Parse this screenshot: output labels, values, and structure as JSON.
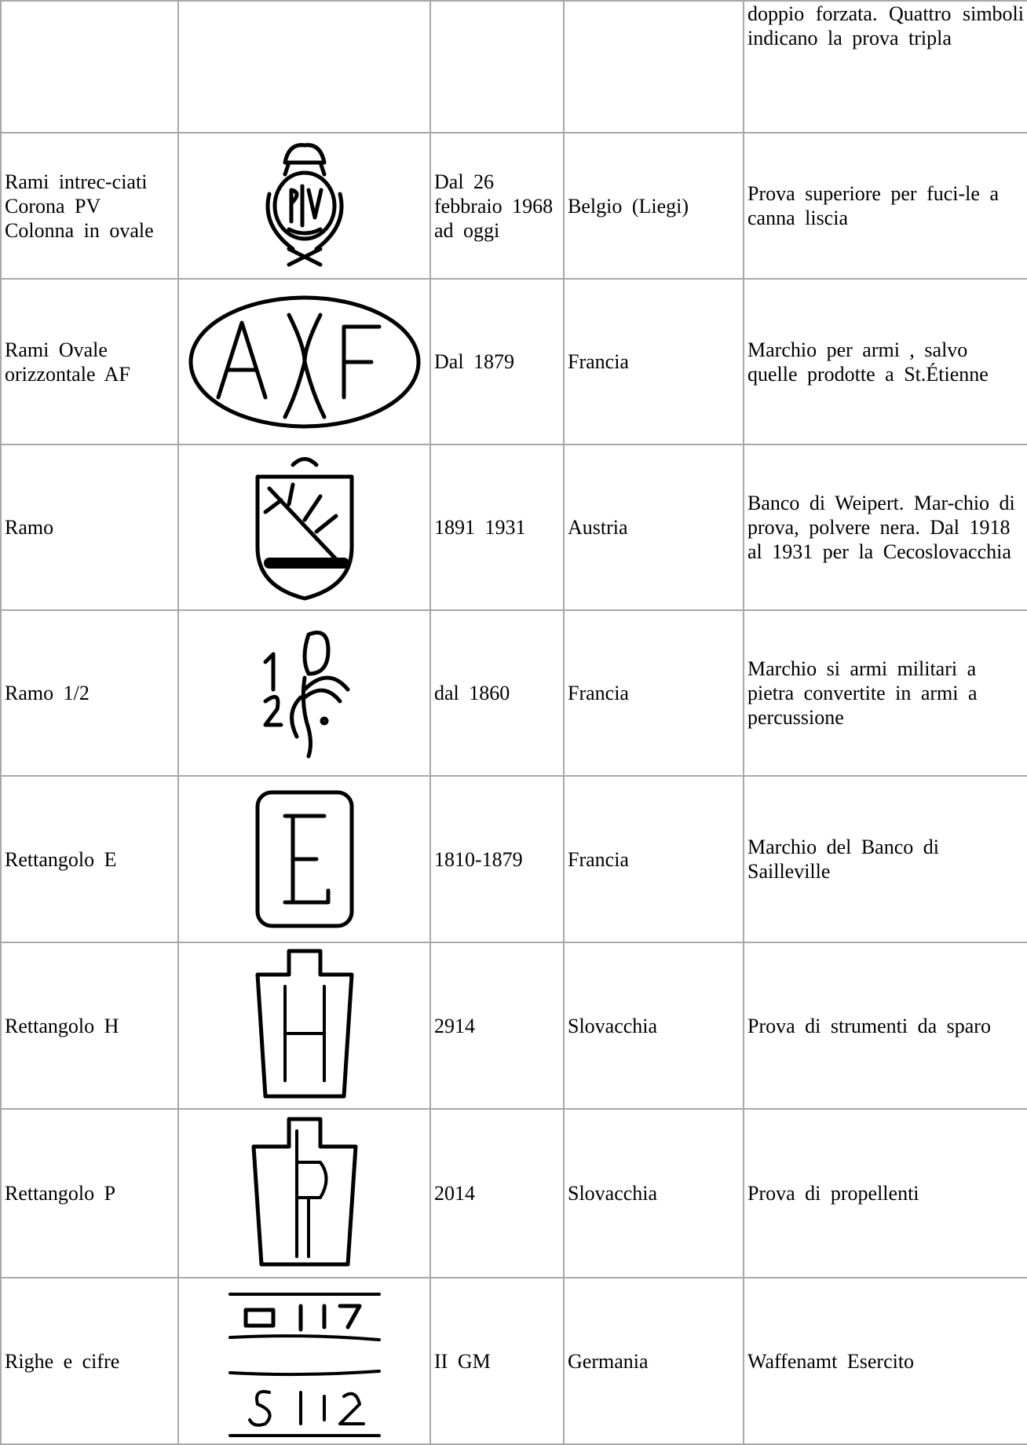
{
  "table": {
    "first_row_description": "doppio forzata. Quattro simboli indicano la prova tripla",
    "rows": [
      {
        "name": "Rami intrec-ciati Corona PV Colonna in ovale",
        "date": "Dal 26 febbraio 1968 ad oggi",
        "country": "Belgio (Liegi)",
        "description": "Prova superiore per fuci-le a canna liscia"
      },
      {
        "name": "Rami Ovale orizzontale AF",
        "date": "Dal 1879",
        "country": "Francia",
        "description": "Marchio per armi , salvo quelle prodotte a St.Étienne"
      },
      {
        "name": "Ramo",
        "date": "1891 1931",
        "country": "Austria",
        "description": "Banco di Weipert. Mar-chio di prova, polvere nera. Dal 1918 al 1931 per la Cecoslovacchia"
      },
      {
        "name": "Ramo 1/2",
        "date": "dal 1860",
        "country": "Francia",
        "description": "Marchio si armi militari a pietra convertite in armi a percussione"
      },
      {
        "name": "Rettangolo E",
        "date": "1810-1879",
        "country": "Francia",
        "description": "Marchio del Banco di Sailleville"
      },
      {
        "name": "Rettangolo H",
        "date": "2914",
        "country": "Slovacchia",
        "description": "Prova di strumenti da sparo"
      },
      {
        "name": "Rettangolo P",
        "date": "2014",
        "country": "Slovacchia",
        "description": "Prova di propellenti"
      },
      {
        "name": "Righe e cifre",
        "date": "II GM",
        "country": "Germania",
        "description": "Waffenamt Esercito"
      }
    ]
  }
}
